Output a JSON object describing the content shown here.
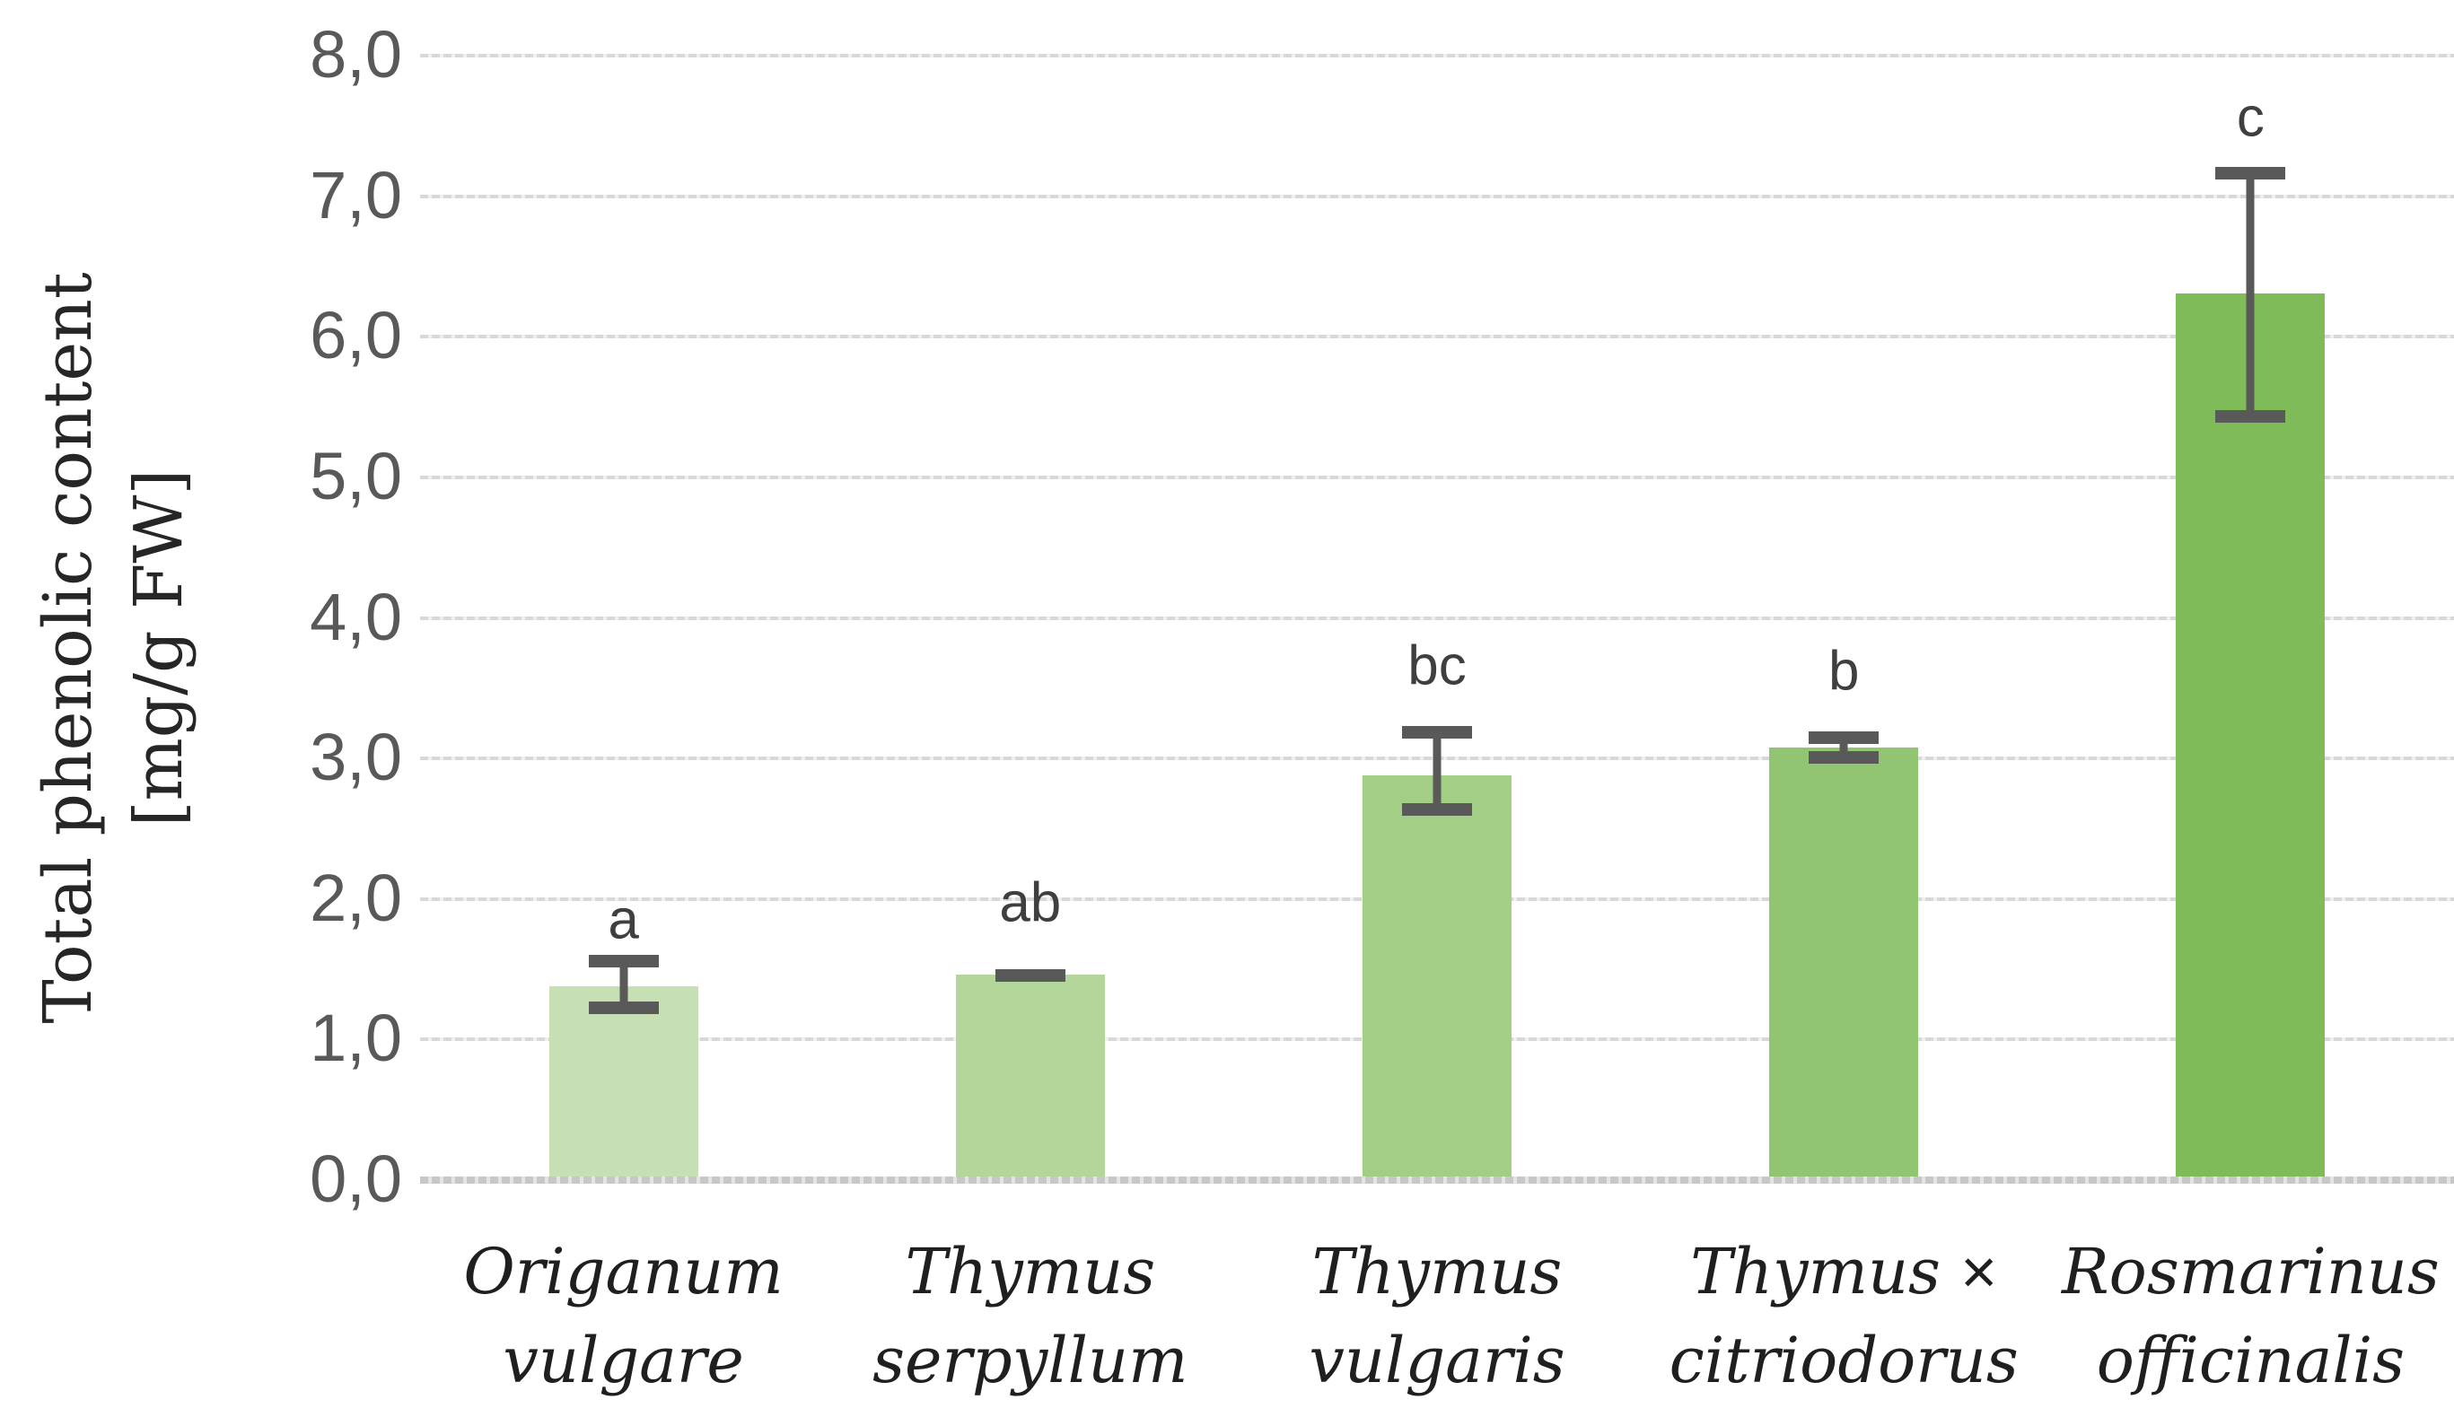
{
  "chart_data": {
    "type": "bar",
    "title": "",
    "ylabel_lines": [
      "Total phenolic content",
      "[mg/g FW]"
    ],
    "xlabel": "",
    "ylim": [
      0,
      8
    ],
    "ytick_step": 1,
    "ytick_labels": [
      "0,0",
      "1,0",
      "2,0",
      "3,0",
      "4,0",
      "5,0",
      "6,0",
      "7,0",
      "8,0"
    ],
    "decimal_separator": ",",
    "grid": "horizontal",
    "legend": "none",
    "categories": [
      [
        "Origanum",
        "vulgare"
      ],
      [
        "Thymus",
        "serpyllum"
      ],
      [
        "Thymus ×",
        "citriodorus"
      ],
      [
        "Rosmarinus",
        "officinalis"
      ]
    ],
    "categories_full": [
      [
        "Origanum",
        "vulgare"
      ],
      [
        "Thymus",
        "serpyllum"
      ],
      [
        "Thymus",
        "vulgaris"
      ],
      [
        "Thymus ×",
        "citriodorus"
      ],
      [
        "Rosmarinus",
        "officinalis"
      ]
    ],
    "series": [
      {
        "name": "Total phenolic content [mg/g FW]",
        "values": [
          1.38,
          1.46,
          2.88,
          3.08,
          6.31
        ]
      }
    ],
    "error_bars": {
      "upper": [
        1.6,
        1.5,
        3.23,
        3.19,
        7.21
      ],
      "lower": [
        1.18,
        1.43,
        2.59,
        2.96,
        5.39
      ]
    },
    "significance_letters": [
      "a",
      "ab",
      "bc",
      "b",
      "c"
    ],
    "letter_y": [
      1.85,
      1.97,
      3.66,
      3.62,
      7.56
    ],
    "bar_colors": [
      "#c6e0b4",
      "#b3d79b",
      "#a3ce86",
      "#92c571",
      "#7fbc59"
    ],
    "colors": {
      "background": "#ffffff",
      "gridline": "#d9d9d9",
      "axis_line": "#c6c6c6",
      "error_bar": "#595959",
      "letters": "#3f3f3f",
      "tick_labels": "#595959",
      "category_labels": "#1f1f1f",
      "ylabel": "#262626"
    }
  }
}
